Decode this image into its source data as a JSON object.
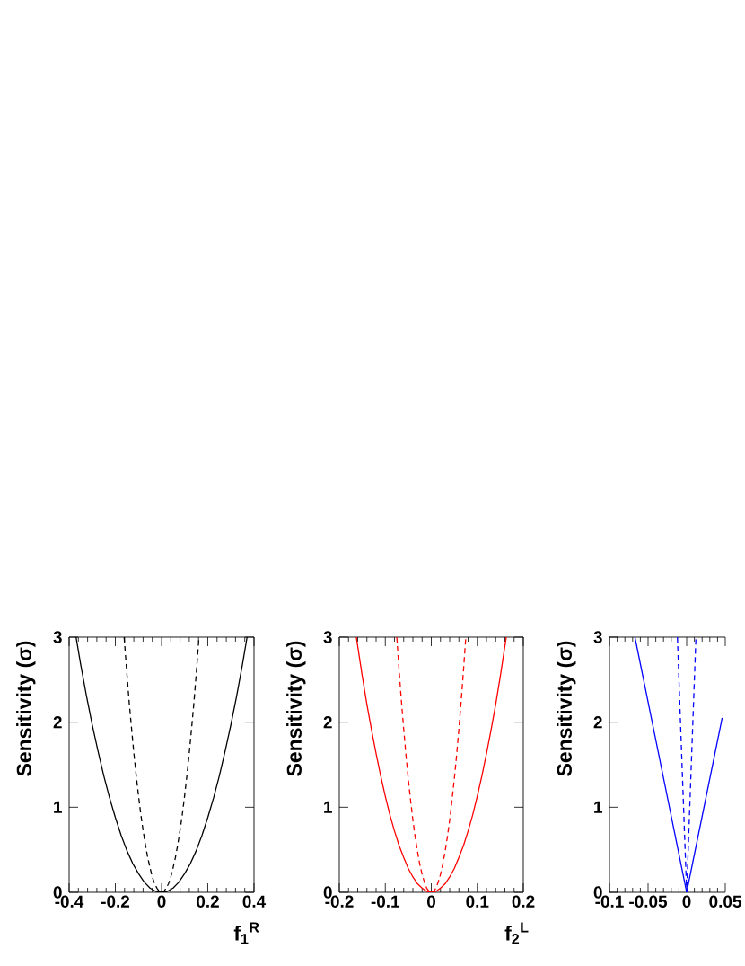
{
  "chart_data": [
    {
      "type": "line",
      "xlabel": "f$_{1}$$^{R}$",
      "ylabel": "Sensitivity (σ)",
      "xlim": [
        -0.4,
        0.4
      ],
      "ylim": [
        0,
        3
      ],
      "xticks": [
        -0.4,
        {
          "value": -0.36,
          "label": null
        },
        {
          "value": -0.32,
          "label": null
        },
        {
          "value": -0.28,
          "label": null
        },
        {
          "value": -0.24,
          "label": null
        },
        -0.2,
        {
          "value": -0.16,
          "label": null
        },
        {
          "value": -0.12,
          "label": null
        },
        {
          "value": -0.08,
          "label": null
        },
        {
          "value": -0.04,
          "label": null
        },
        0,
        {
          "value": 0.04,
          "label": null
        },
        {
          "value": 0.08,
          "label": null
        },
        {
          "value": 0.12,
          "label": null
        },
        {
          "value": 0.16,
          "label": null
        },
        0.2,
        {
          "value": 0.24,
          "label": null
        },
        {
          "value": 0.28,
          "label": null
        },
        {
          "value": 0.32,
          "label": null
        },
        {
          "value": 0.36,
          "label": null
        },
        0.4
      ],
      "yticks": [
        0,
        1,
        2,
        3
      ],
      "series": [
        {
          "color": "#000000",
          "line_style": "solid",
          "x": [
            -0.37,
            -0.35,
            -0.325,
            -0.3,
            -0.275,
            -0.25,
            -0.225,
            -0.2,
            -0.175,
            -0.15,
            -0.125,
            -0.1,
            -0.075,
            -0.05,
            -0.025,
            0,
            0.025,
            0.05,
            0.075,
            0.1,
            0.125,
            0.15,
            0.175,
            0.2,
            0.225,
            0.25,
            0.275,
            0.3,
            0.325,
            0.35,
            0.37
          ],
          "values": [
            3.0,
            2.68,
            2.31,
            1.97,
            1.66,
            1.37,
            1.11,
            0.88,
            0.67,
            0.49,
            0.34,
            0.22,
            0.12,
            0.05,
            0.01,
            0,
            0.01,
            0.05,
            0.12,
            0.22,
            0.34,
            0.49,
            0.67,
            0.88,
            1.11,
            1.37,
            1.66,
            1.97,
            2.31,
            2.68,
            3.0
          ]
        },
        {
          "color": "#000000",
          "line_style": "dashed",
          "x": [
            -0.162,
            -0.15,
            -0.14,
            -0.13,
            -0.12,
            -0.11,
            -0.1,
            -0.09,
            -0.08,
            -0.07,
            -0.06,
            -0.05,
            -0.04,
            -0.03,
            -0.02,
            -0.01,
            0,
            0.01,
            0.02,
            0.03,
            0.04,
            0.05,
            0.06,
            0.07,
            0.08,
            0.09,
            0.1,
            0.11,
            0.12,
            0.13,
            0.14,
            0.15,
            0.162
          ],
          "values": [
            3.0,
            2.57,
            2.23,
            1.93,
            1.64,
            1.38,
            1.14,
            0.92,
            0.73,
            0.56,
            0.41,
            0.29,
            0.18,
            0.1,
            0.05,
            0.01,
            0,
            0.01,
            0.05,
            0.1,
            0.18,
            0.29,
            0.41,
            0.56,
            0.73,
            0.92,
            1.14,
            1.38,
            1.64,
            1.93,
            2.23,
            2.57,
            3.0
          ]
        }
      ]
    },
    {
      "type": "line",
      "xlabel": "f$_{2}$$^{L}$",
      "ylabel": "Sensitivity (σ)",
      "xlim": [
        -0.2,
        0.2
      ],
      "ylim": [
        0,
        3
      ],
      "xticks": [
        -0.2,
        {
          "value": -0.18,
          "label": null
        },
        {
          "value": -0.16,
          "label": null
        },
        {
          "value": -0.14,
          "label": null
        },
        {
          "value": -0.12,
          "label": null
        },
        -0.1,
        {
          "value": -0.08,
          "label": null
        },
        {
          "value": -0.06,
          "label": null
        },
        {
          "value": -0.04,
          "label": null
        },
        {
          "value": -0.02,
          "label": null
        },
        0,
        {
          "value": 0.02,
          "label": null
        },
        {
          "value": 0.04,
          "label": null
        },
        {
          "value": 0.06,
          "label": null
        },
        {
          "value": 0.08,
          "label": null
        },
        0.1,
        {
          "value": 0.12,
          "label": null
        },
        {
          "value": 0.14,
          "label": null
        },
        {
          "value": 0.16,
          "label": null
        },
        {
          "value": 0.18,
          "label": null
        },
        0.2
      ],
      "yticks": [
        0,
        1,
        2,
        3
      ],
      "series": [
        {
          "color": "#ff0000",
          "line_style": "solid",
          "x": [
            -0.163,
            -0.15,
            -0.14,
            -0.13,
            -0.12,
            -0.11,
            -0.1,
            -0.09,
            -0.08,
            -0.07,
            -0.06,
            -0.05,
            -0.04,
            -0.03,
            -0.02,
            -0.01,
            0,
            0.01,
            0.02,
            0.03,
            0.04,
            0.05,
            0.06,
            0.07,
            0.08,
            0.09,
            0.1,
            0.11,
            0.12,
            0.13,
            0.14,
            0.15,
            0.163
          ],
          "values": [
            3.0,
            2.54,
            2.21,
            1.91,
            1.63,
            1.37,
            1.13,
            0.91,
            0.72,
            0.55,
            0.41,
            0.28,
            0.18,
            0.1,
            0.05,
            0.01,
            0,
            0.01,
            0.05,
            0.1,
            0.18,
            0.28,
            0.41,
            0.55,
            0.72,
            0.91,
            1.13,
            1.37,
            1.63,
            1.91,
            2.21,
            2.54,
            3.0
          ]
        },
        {
          "color": "#ff0000",
          "line_style": "dashed",
          "x": [
            -0.075,
            -0.07,
            -0.065,
            -0.06,
            -0.055,
            -0.05,
            -0.045,
            -0.04,
            -0.035,
            -0.03,
            -0.025,
            -0.02,
            -0.015,
            -0.01,
            -0.005,
            0,
            0.005,
            0.01,
            0.015,
            0.02,
            0.025,
            0.03,
            0.035,
            0.04,
            0.045,
            0.05,
            0.055,
            0.06,
            0.065,
            0.07,
            0.075
          ],
          "values": [
            3.0,
            2.61,
            2.25,
            1.92,
            1.61,
            1.33,
            1.08,
            0.85,
            0.65,
            0.48,
            0.33,
            0.21,
            0.12,
            0.05,
            0.01,
            0,
            0.01,
            0.05,
            0.12,
            0.21,
            0.33,
            0.48,
            0.65,
            0.85,
            1.08,
            1.33,
            1.61,
            1.92,
            2.25,
            2.61,
            3.0
          ]
        }
      ]
    },
    {
      "type": "line",
      "ylabel": "Sensitivity (σ)",
      "xlim": [
        -0.1,
        0.05
      ],
      "ylim": [
        0,
        3
      ],
      "xticks": [
        -0.1,
        {
          "value": -0.09,
          "label": null
        },
        {
          "value": -0.08,
          "label": null
        },
        {
          "value": -0.07,
          "label": null
        },
        {
          "value": -0.06,
          "label": null
        },
        -0.05,
        {
          "value": -0.04,
          "label": null
        },
        {
          "value": -0.03,
          "label": null
        },
        {
          "value": -0.02,
          "label": null
        },
        {
          "value": -0.01,
          "label": null
        },
        0,
        {
          "value": 0.01,
          "label": null
        },
        {
          "value": 0.02,
          "label": null
        },
        {
          "value": 0.03,
          "label": null
        },
        {
          "value": 0.04,
          "label": null
        },
        0.05
      ],
      "yticks": [
        0,
        1,
        2,
        3
      ],
      "series": [
        {
          "color": "#0000ff",
          "line_style": "solid",
          "x": [
            -0.067,
            0,
            0.046
          ],
          "values": [
            3.0,
            0,
            2.05
          ]
        },
        {
          "color": "#0000ff",
          "line_style": "dashed",
          "x": [
            -0.012,
            0,
            0.012
          ],
          "values": [
            3.0,
            0,
            3.0
          ]
        }
      ]
    }
  ]
}
